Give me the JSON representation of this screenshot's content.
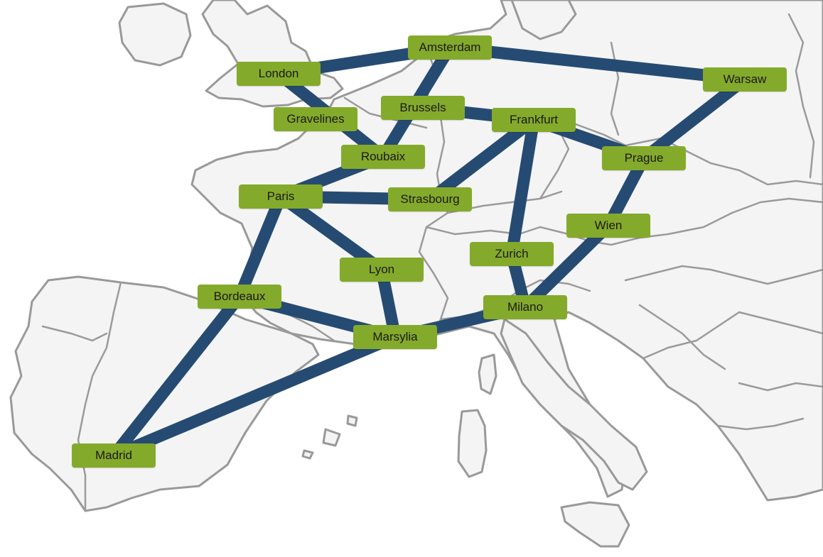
{
  "map": {
    "colors": {
      "land": "#f4f4f4",
      "border": "#9a9a9a",
      "link": "#264b73",
      "node": "#84aa2b",
      "node_text": "#1a1a1a"
    },
    "cities": [
      {
        "id": "amsterdam",
        "label": "Amsterdam"
      },
      {
        "id": "london",
        "label": "London"
      },
      {
        "id": "warsaw",
        "label": "Warsaw"
      },
      {
        "id": "gravelines",
        "label": "Gravelines"
      },
      {
        "id": "brussels",
        "label": "Brussels"
      },
      {
        "id": "frankfurt",
        "label": "Frankfurt"
      },
      {
        "id": "roubaix",
        "label": "Roubaix"
      },
      {
        "id": "prague",
        "label": "Prague"
      },
      {
        "id": "paris",
        "label": "Paris"
      },
      {
        "id": "strasbourg",
        "label": "Strasbourg"
      },
      {
        "id": "wien",
        "label": "Wien"
      },
      {
        "id": "zurich",
        "label": "Zurich"
      },
      {
        "id": "lyon",
        "label": "Lyon"
      },
      {
        "id": "bordeaux",
        "label": "Bordeaux"
      },
      {
        "id": "milano",
        "label": "Milano"
      },
      {
        "id": "marsylia",
        "label": "Marsylia"
      },
      {
        "id": "madrid",
        "label": "Madrid"
      }
    ],
    "links": [
      [
        "london",
        "amsterdam"
      ],
      [
        "amsterdam",
        "warsaw"
      ],
      [
        "amsterdam",
        "roubaix"
      ],
      [
        "london",
        "roubaix"
      ],
      [
        "brussels",
        "frankfurt"
      ],
      [
        "roubaix",
        "paris"
      ],
      [
        "paris",
        "strasbourg"
      ],
      [
        "strasbourg",
        "frankfurt"
      ],
      [
        "frankfurt",
        "prague"
      ],
      [
        "frankfurt",
        "zurich"
      ],
      [
        "prague",
        "warsaw"
      ],
      [
        "prague",
        "wien"
      ],
      [
        "wien",
        "milano"
      ],
      [
        "zurich",
        "milano"
      ],
      [
        "paris",
        "lyon"
      ],
      [
        "paris",
        "bordeaux"
      ],
      [
        "lyon",
        "marsylia"
      ],
      [
        "bordeaux",
        "marsylia"
      ],
      [
        "bordeaux",
        "madrid"
      ],
      [
        "marsylia",
        "madrid"
      ],
      [
        "marsylia",
        "milano"
      ]
    ]
  }
}
